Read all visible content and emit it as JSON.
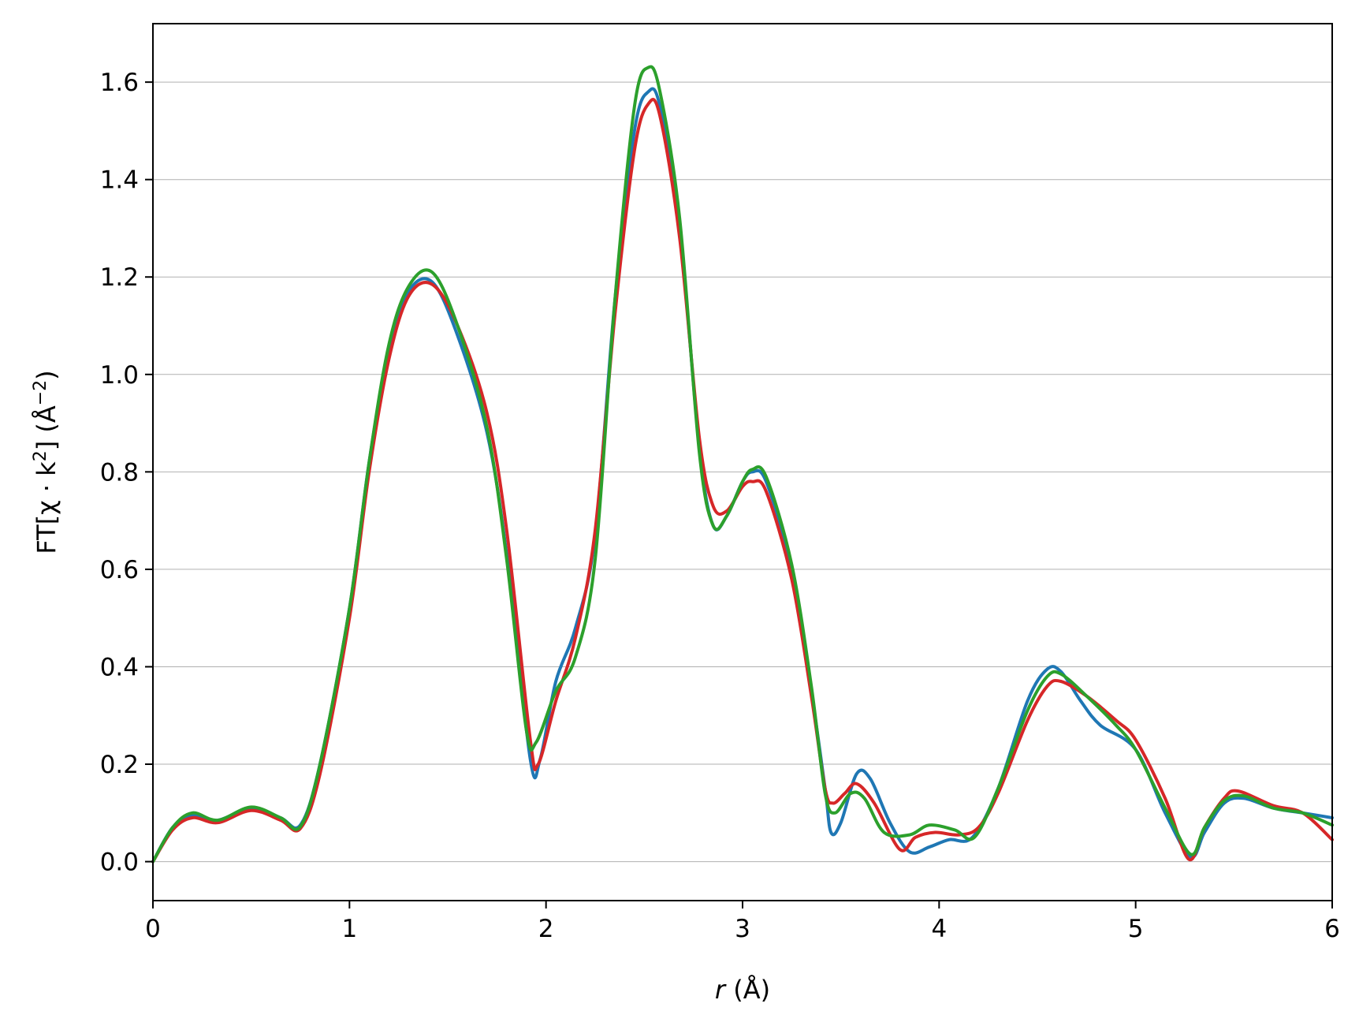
{
  "chart_data": {
    "type": "line",
    "title": "",
    "xlabel_var": "r",
    "xlabel_unit": " (Å)",
    "ylabel_main": "FT[χ · k",
    "ylabel_exp": "2",
    "ylabel_close": "] (Å",
    "ylabel_unit_exp": "−2",
    "ylabel_end": ")",
    "xlim": [
      0,
      6
    ],
    "ylim": [
      -0.08,
      1.72
    ],
    "xticks": [
      0,
      1,
      2,
      3,
      4,
      5,
      6
    ],
    "yticks": [
      0.0,
      0.2,
      0.4,
      0.6,
      0.8,
      1.0,
      1.2,
      1.4,
      1.6
    ],
    "xtick_labels": [
      "0",
      "1",
      "2",
      "3",
      "4",
      "5",
      "6"
    ],
    "ytick_labels": [
      "0.0",
      "0.2",
      "0.4",
      "0.6",
      "0.8",
      "1.0",
      "1.2",
      "1.4",
      "1.6"
    ],
    "grid": "horizontal",
    "series": [
      {
        "color": "#1f77b4",
        "points": [
          [
            0,
            0
          ],
          [
            0.1,
            0.07
          ],
          [
            0.2,
            0.095
          ],
          [
            0.33,
            0.085
          ],
          [
            0.5,
            0.11
          ],
          [
            0.65,
            0.09
          ],
          [
            0.75,
            0.075
          ],
          [
            0.85,
            0.2
          ],
          [
            1.0,
            0.52
          ],
          [
            1.1,
            0.82
          ],
          [
            1.2,
            1.05
          ],
          [
            1.3,
            1.17
          ],
          [
            1.42,
            1.19
          ],
          [
            1.55,
            1.08
          ],
          [
            1.7,
            0.88
          ],
          [
            1.8,
            0.63
          ],
          [
            1.92,
            0.21
          ],
          [
            1.97,
            0.21
          ],
          [
            2.05,
            0.37
          ],
          [
            2.15,
            0.48
          ],
          [
            2.25,
            0.67
          ],
          [
            2.35,
            1.15
          ],
          [
            2.45,
            1.5
          ],
          [
            2.52,
            1.58
          ],
          [
            2.58,
            1.55
          ],
          [
            2.68,
            1.3
          ],
          [
            2.78,
            0.85
          ],
          [
            2.85,
            0.69
          ],
          [
            2.92,
            0.71
          ],
          [
            3.0,
            0.78
          ],
          [
            3.05,
            0.8
          ],
          [
            3.12,
            0.78
          ],
          [
            3.25,
            0.6
          ],
          [
            3.35,
            0.35
          ],
          [
            3.42,
            0.15
          ],
          [
            3.45,
            0.06
          ],
          [
            3.5,
            0.08
          ],
          [
            3.58,
            0.18
          ],
          [
            3.65,
            0.17
          ],
          [
            3.75,
            0.08
          ],
          [
            3.85,
            0.02
          ],
          [
            3.95,
            0.03
          ],
          [
            4.05,
            0.045
          ],
          [
            4.17,
            0.05
          ],
          [
            4.3,
            0.15
          ],
          [
            4.45,
            0.33
          ],
          [
            4.55,
            0.395
          ],
          [
            4.62,
            0.39
          ],
          [
            4.72,
            0.33
          ],
          [
            4.82,
            0.28
          ],
          [
            5.0,
            0.23
          ],
          [
            5.15,
            0.1
          ],
          [
            5.28,
            0.01
          ],
          [
            5.35,
            0.06
          ],
          [
            5.45,
            0.12
          ],
          [
            5.55,
            0.13
          ],
          [
            5.7,
            0.11
          ],
          [
            5.85,
            0.1
          ],
          [
            6.0,
            0.09
          ]
        ]
      },
      {
        "color": "#d62728",
        "points": [
          [
            0,
            0
          ],
          [
            0.1,
            0.065
          ],
          [
            0.2,
            0.09
          ],
          [
            0.33,
            0.08
          ],
          [
            0.5,
            0.105
          ],
          [
            0.65,
            0.085
          ],
          [
            0.75,
            0.068
          ],
          [
            0.85,
            0.18
          ],
          [
            1.0,
            0.5
          ],
          [
            1.1,
            0.8
          ],
          [
            1.2,
            1.03
          ],
          [
            1.3,
            1.16
          ],
          [
            1.42,
            1.185
          ],
          [
            1.55,
            1.1
          ],
          [
            1.7,
            0.92
          ],
          [
            1.8,
            0.68
          ],
          [
            1.92,
            0.25
          ],
          [
            1.96,
            0.2
          ],
          [
            2.05,
            0.33
          ],
          [
            2.15,
            0.46
          ],
          [
            2.25,
            0.68
          ],
          [
            2.35,
            1.12
          ],
          [
            2.45,
            1.46
          ],
          [
            2.52,
            1.555
          ],
          [
            2.58,
            1.53
          ],
          [
            2.68,
            1.28
          ],
          [
            2.78,
            0.87
          ],
          [
            2.85,
            0.73
          ],
          [
            2.92,
            0.72
          ],
          [
            3.0,
            0.77
          ],
          [
            3.05,
            0.78
          ],
          [
            3.12,
            0.76
          ],
          [
            3.25,
            0.58
          ],
          [
            3.35,
            0.34
          ],
          [
            3.42,
            0.15
          ],
          [
            3.46,
            0.12
          ],
          [
            3.52,
            0.14
          ],
          [
            3.58,
            0.16
          ],
          [
            3.67,
            0.12
          ],
          [
            3.8,
            0.025
          ],
          [
            3.88,
            0.05
          ],
          [
            3.98,
            0.06
          ],
          [
            4.1,
            0.055
          ],
          [
            4.2,
            0.07
          ],
          [
            4.3,
            0.14
          ],
          [
            4.45,
            0.29
          ],
          [
            4.55,
            0.36
          ],
          [
            4.62,
            0.37
          ],
          [
            4.75,
            0.34
          ],
          [
            4.9,
            0.29
          ],
          [
            5.0,
            0.25
          ],
          [
            5.15,
            0.13
          ],
          [
            5.27,
            0.005
          ],
          [
            5.35,
            0.07
          ],
          [
            5.45,
            0.13
          ],
          [
            5.52,
            0.145
          ],
          [
            5.7,
            0.115
          ],
          [
            5.85,
            0.1
          ],
          [
            6.0,
            0.045
          ]
        ]
      },
      {
        "color": "#2ca02c",
        "points": [
          [
            0,
            0
          ],
          [
            0.1,
            0.07
          ],
          [
            0.2,
            0.1
          ],
          [
            0.33,
            0.085
          ],
          [
            0.5,
            0.112
          ],
          [
            0.65,
            0.09
          ],
          [
            0.75,
            0.072
          ],
          [
            0.85,
            0.2
          ],
          [
            1.0,
            0.52
          ],
          [
            1.1,
            0.82
          ],
          [
            1.2,
            1.06
          ],
          [
            1.3,
            1.18
          ],
          [
            1.42,
            1.21
          ],
          [
            1.55,
            1.1
          ],
          [
            1.7,
            0.89
          ],
          [
            1.8,
            0.62
          ],
          [
            1.9,
            0.27
          ],
          [
            1.95,
            0.245
          ],
          [
            2.05,
            0.35
          ],
          [
            2.15,
            0.42
          ],
          [
            2.25,
            0.62
          ],
          [
            2.35,
            1.15
          ],
          [
            2.45,
            1.55
          ],
          [
            2.52,
            1.63
          ],
          [
            2.58,
            1.58
          ],
          [
            2.68,
            1.32
          ],
          [
            2.78,
            0.84
          ],
          [
            2.85,
            0.69
          ],
          [
            2.92,
            0.71
          ],
          [
            3.0,
            0.78
          ],
          [
            3.05,
            0.805
          ],
          [
            3.12,
            0.79
          ],
          [
            3.25,
            0.61
          ],
          [
            3.35,
            0.36
          ],
          [
            3.42,
            0.14
          ],
          [
            3.47,
            0.1
          ],
          [
            3.55,
            0.14
          ],
          [
            3.62,
            0.13
          ],
          [
            3.72,
            0.06
          ],
          [
            3.85,
            0.055
          ],
          [
            3.95,
            0.075
          ],
          [
            4.08,
            0.065
          ],
          [
            4.18,
            0.05
          ],
          [
            4.3,
            0.15
          ],
          [
            4.45,
            0.31
          ],
          [
            4.55,
            0.38
          ],
          [
            4.62,
            0.385
          ],
          [
            4.75,
            0.34
          ],
          [
            4.9,
            0.28
          ],
          [
            5.0,
            0.23
          ],
          [
            5.15,
            0.11
          ],
          [
            5.28,
            0.015
          ],
          [
            5.35,
            0.07
          ],
          [
            5.45,
            0.125
          ],
          [
            5.55,
            0.135
          ],
          [
            5.7,
            0.11
          ],
          [
            5.85,
            0.1
          ],
          [
            6.0,
            0.075
          ]
        ]
      }
    ]
  }
}
